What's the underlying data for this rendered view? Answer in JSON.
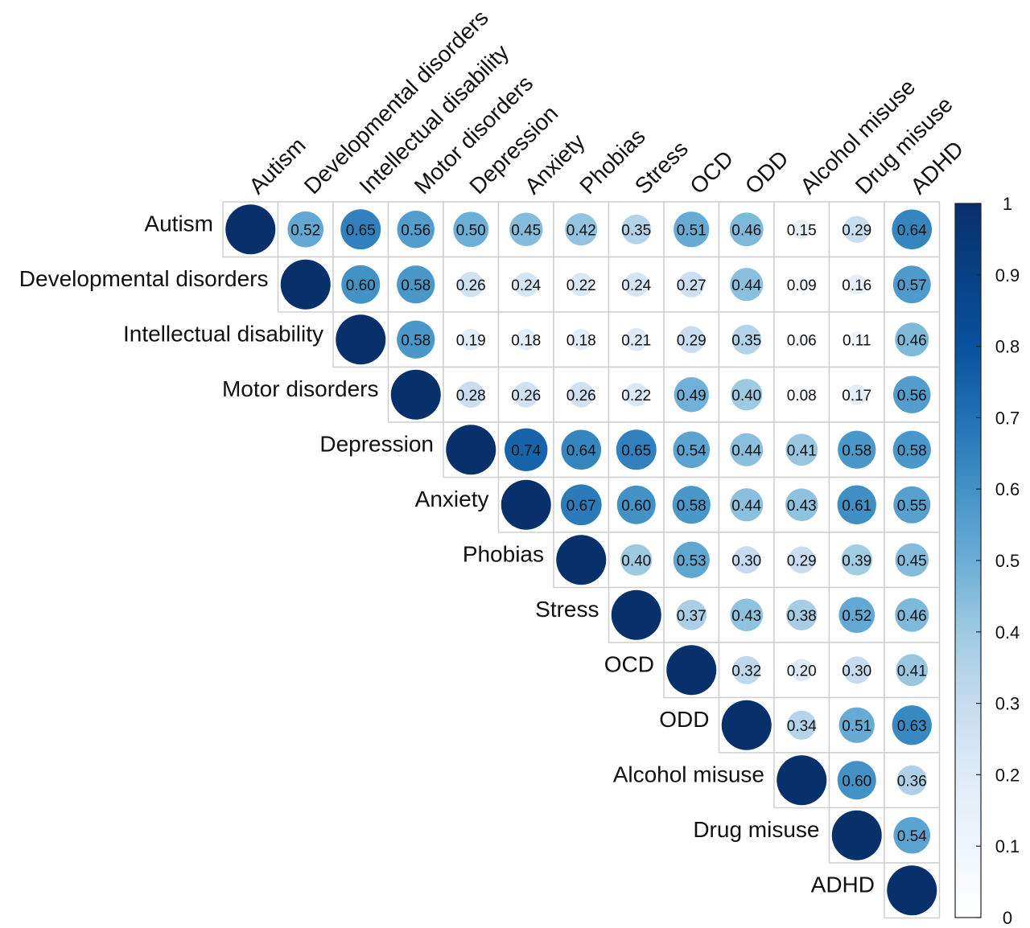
{
  "chart_data": {
    "type": "heatmap",
    "subtype": "correlation-matrix-circles-upper-triangle",
    "variables": [
      "Autism",
      "Developmental disorders",
      "Intellectual disability",
      "Motor disorders",
      "Depression",
      "Anxiety",
      "Phobias",
      "Stress",
      "OCD",
      "ODD",
      "Alcohol misuse",
      "Drug misuse",
      "ADHD"
    ],
    "values": [
      [
        1,
        0.52,
        0.65,
        0.56,
        0.5,
        0.45,
        0.42,
        0.35,
        0.51,
        0.46,
        0.15,
        0.29,
        0.64
      ],
      [
        null,
        1,
        0.6,
        0.58,
        0.26,
        0.24,
        0.22,
        0.24,
        0.27,
        0.44,
        0.09,
        0.16,
        0.57
      ],
      [
        null,
        null,
        1,
        0.58,
        0.19,
        0.18,
        0.18,
        0.21,
        0.29,
        0.35,
        0.06,
        0.11,
        0.46
      ],
      [
        null,
        null,
        null,
        1,
        0.28,
        0.26,
        0.26,
        0.22,
        0.49,
        0.4,
        0.08,
        0.17,
        0.56
      ],
      [
        null,
        null,
        null,
        null,
        1,
        0.74,
        0.64,
        0.65,
        0.54,
        0.44,
        0.41,
        0.58,
        0.58
      ],
      [
        null,
        null,
        null,
        null,
        null,
        1,
        0.67,
        0.6,
        0.58,
        0.44,
        0.43,
        0.61,
        0.55
      ],
      [
        null,
        null,
        null,
        null,
        null,
        null,
        1,
        0.4,
        0.53,
        0.3,
        0.29,
        0.39,
        0.45
      ],
      [
        null,
        null,
        null,
        null,
        null,
        null,
        null,
        1,
        0.37,
        0.43,
        0.38,
        0.52,
        0.46
      ],
      [
        null,
        null,
        null,
        null,
        null,
        null,
        null,
        null,
        1,
        0.32,
        0.2,
        0.3,
        0.41
      ],
      [
        null,
        null,
        null,
        null,
        null,
        null,
        null,
        null,
        null,
        1,
        0.34,
        0.51,
        0.63
      ],
      [
        null,
        null,
        null,
        null,
        null,
        null,
        null,
        null,
        null,
        null,
        1,
        0.6,
        0.36
      ],
      [
        null,
        null,
        null,
        null,
        null,
        null,
        null,
        null,
        null,
        null,
        null,
        1,
        0.54
      ],
      [
        null,
        null,
        null,
        null,
        null,
        null,
        null,
        null,
        null,
        null,
        null,
        null,
        1
      ]
    ],
    "diagonal_value_labels_shown": false,
    "colorbar": {
      "range": [
        0,
        1
      ],
      "ticks": [
        "0",
        "0.1",
        "0.2",
        "0.3",
        "0.4",
        "0.5",
        "0.6",
        "0.7",
        "0.8",
        "0.9",
        "1"
      ],
      "color_low": "#ffffff",
      "color_high": "#08306b"
    },
    "grid": true,
    "legend_position": "right"
  }
}
